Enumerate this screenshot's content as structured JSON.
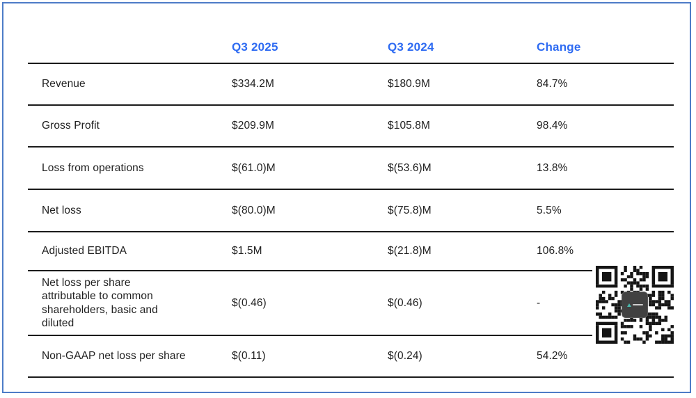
{
  "chart_data": {
    "type": "table",
    "columns": [
      "",
      "Q3 2025",
      "Q3 2024",
      "Change"
    ],
    "rows": [
      {
        "metric": "Revenue",
        "q3_2025": "$334.2M",
        "q3_2024": "$180.9M",
        "change": "84.7%"
      },
      {
        "metric": "Gross Profit",
        "q3_2025": "$209.9M",
        "q3_2024": "$105.8M",
        "change": "98.4%"
      },
      {
        "metric": "Loss from operations",
        "q3_2025": "$(61.0)M",
        "q3_2024": "$(53.6)M",
        "change": "13.8%"
      },
      {
        "metric": "Net loss",
        "q3_2025": "$(80.0)M",
        "q3_2024": "$(75.8)M",
        "change": "5.5%"
      },
      {
        "metric": "Adjusted EBITDA",
        "q3_2025": "$1.5M",
        "q3_2024": "$(21.8)M",
        "change": "106.8%"
      },
      {
        "metric": "Net loss per share\nattributable to common\nshareholders, basic and\ndiluted",
        "q3_2025": "$(0.46)",
        "q3_2024": "$(0.46)",
        "change": "-"
      },
      {
        "metric": "Non-GAAP net loss per share",
        "q3_2025": "$(0.11)",
        "q3_2024": "$(0.24)",
        "change": "54.2%"
      }
    ],
    "layout": {
      "grid": "horizontal-rules-only",
      "legend": "none"
    }
  },
  "colors": {
    "header_text": "#2e6bf2",
    "frame_border": "#4d7cc7",
    "rule": "#1b1b1b",
    "body_text": "#212121",
    "qr_module": "#151515"
  },
  "icons": {
    "qr_code": "qr-code"
  }
}
